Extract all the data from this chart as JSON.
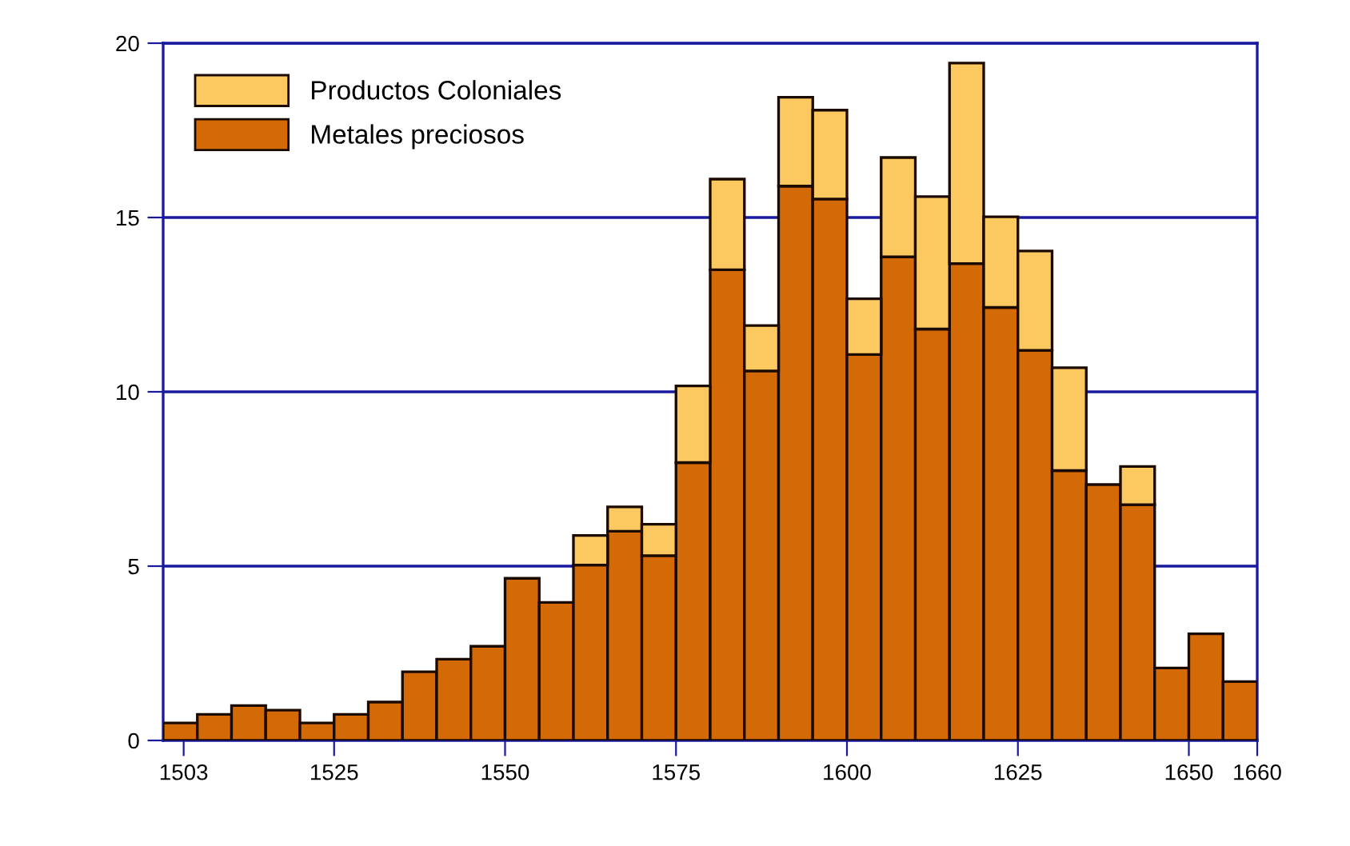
{
  "chart_data": {
    "type": "bar",
    "stacked": true,
    "x": [
      1502.5,
      1507.5,
      1512.5,
      1517.5,
      1522.5,
      1527.5,
      1532.5,
      1537.5,
      1542.5,
      1547.5,
      1552.5,
      1557.5,
      1562.5,
      1567.5,
      1572.5,
      1577.5,
      1582.5,
      1587.5,
      1592.5,
      1597.5,
      1602.5,
      1607.5,
      1612.5,
      1617.5,
      1622.5,
      1627.5,
      1632.5,
      1637.5,
      1642.5,
      1647.5,
      1652.5,
      1657.5
    ],
    "series": [
      {
        "name": "Metales preciosos",
        "color": "#d46a06",
        "values": [
          0.5,
          0.75,
          1.0,
          0.87,
          0.5,
          0.75,
          1.1,
          1.97,
          2.33,
          2.7,
          4.65,
          3.96,
          5.03,
          6.0,
          5.3,
          7.97,
          13.5,
          10.6,
          15.9,
          15.53,
          11.07,
          13.87,
          11.8,
          13.68,
          12.42,
          11.19,
          7.74,
          7.34,
          6.76,
          2.08,
          3.06,
          1.69
        ]
      },
      {
        "name": "Productos Coloniales",
        "color": "#fcc860",
        "values": [
          null,
          null,
          null,
          null,
          null,
          null,
          null,
          null,
          null,
          null,
          null,
          null,
          0.85,
          0.7,
          0.9,
          2.2,
          2.6,
          1.3,
          2.55,
          2.55,
          1.6,
          2.85,
          3.8,
          5.75,
          2.6,
          2.85,
          2.95,
          null,
          1.1,
          null,
          null,
          null
        ]
      }
    ],
    "xlim": [
      1500,
      1660
    ],
    "xticks": [
      1503,
      1525,
      1550,
      1575,
      1600,
      1625,
      1650,
      1660
    ],
    "ylim": [
      0,
      20
    ],
    "yticks": [
      0,
      5,
      10,
      15,
      20
    ],
    "grid": "y",
    "legend": "top left"
  }
}
